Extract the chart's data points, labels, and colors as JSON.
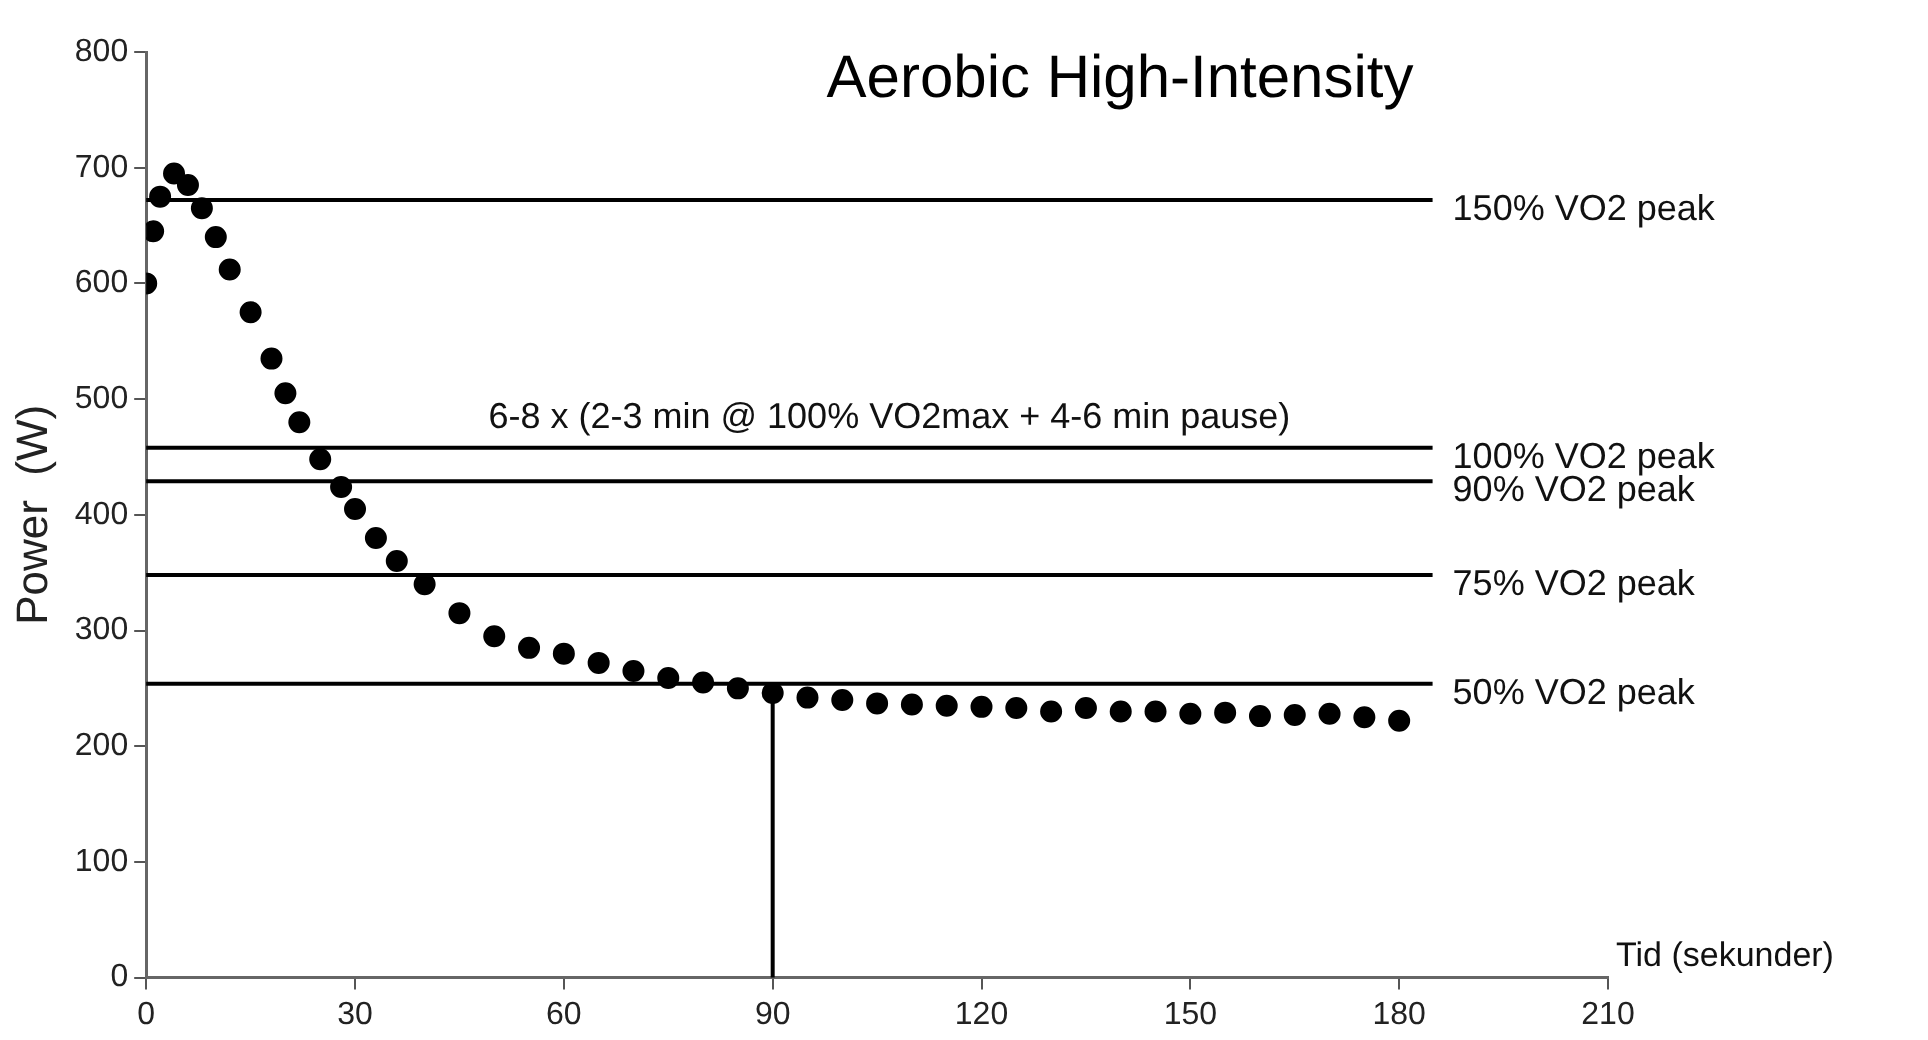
{
  "chart_data": {
    "type": "scatter",
    "title": "Aerobic High-Intensity",
    "xlabel": "Tid (sekunder)",
    "ylabel": "Power  (W)",
    "x": [
      0,
      1,
      2,
      4,
      6,
      8,
      10,
      12,
      15,
      18,
      20,
      22,
      25,
      28,
      30,
      33,
      36,
      40,
      45,
      50,
      55,
      60,
      65,
      70,
      75,
      80,
      85,
      90,
      95,
      100,
      105,
      110,
      115,
      120,
      125,
      130,
      135,
      140,
      145,
      150,
      155,
      160,
      165,
      170,
      175,
      180
    ],
    "series": [
      {
        "color": "#000000",
        "values": [
          600,
          645,
          675,
          695,
          685,
          665,
          640,
          612,
          575,
          535,
          505,
          480,
          448,
          424,
          405,
          380,
          360,
          340,
          315,
          295,
          285,
          280,
          272,
          265,
          259,
          255,
          250,
          246,
          242,
          240,
          237,
          236,
          235,
          234,
          233,
          230,
          233,
          230,
          230,
          228,
          229,
          226,
          227,
          228,
          225,
          222
        ]
      }
    ],
    "marker": "circle",
    "xlim": [
      0,
      210
    ],
    "xticks": [
      0,
      30,
      60,
      90,
      120,
      150,
      180,
      210
    ],
    "ylim": [
      0,
      800
    ],
    "yticks": [
      0,
      100,
      200,
      300,
      400,
      500,
      600,
      700,
      800
    ],
    "ref_lines": [
      {
        "axis": "y",
        "value": 672,
        "label": "150% VO2 peak"
      },
      {
        "axis": "y",
        "value": 458,
        "label": "100% VO2 peak"
      },
      {
        "axis": "y",
        "value": 429,
        "label": "90% VO2 peak"
      },
      {
        "axis": "y",
        "value": 348,
        "label": "75% VO2 peak"
      },
      {
        "axis": "y",
        "value": 254,
        "label": "50% VO2 peak"
      },
      {
        "axis": "x",
        "value": 90
      }
    ],
    "annotations": [
      "6-8 x (2-3 min @ 100% VO2max + 4-6 min pause)"
    ],
    "grid": false,
    "legend": false
  }
}
